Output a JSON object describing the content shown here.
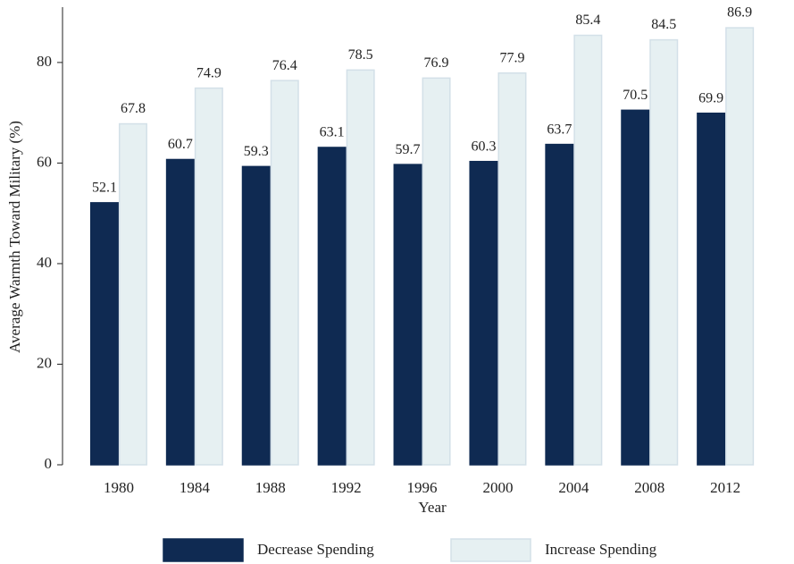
{
  "chart_data": {
    "type": "bar",
    "x_label": "Year",
    "y_label": "Average Warmth Toward Military (%)",
    "categories": [
      "1980",
      "1984",
      "1988",
      "1992",
      "1996",
      "2000",
      "2004",
      "2008",
      "2012"
    ],
    "series": [
      {
        "name": "Decrease Spending",
        "color": "#0f2a52",
        "values": [
          52.1,
          60.7,
          59.3,
          63.1,
          59.7,
          60.3,
          63.7,
          70.5,
          69.9
        ]
      },
      {
        "name": "Increase Spending",
        "color": "#e6f0f2",
        "values": [
          67.8,
          74.9,
          76.4,
          78.5,
          76.9,
          77.9,
          85.4,
          84.5,
          86.9
        ]
      }
    ],
    "ylim": [
      0,
      91
    ],
    "yticks": [
      0,
      20,
      40,
      60,
      80
    ],
    "legend": "bottom"
  }
}
